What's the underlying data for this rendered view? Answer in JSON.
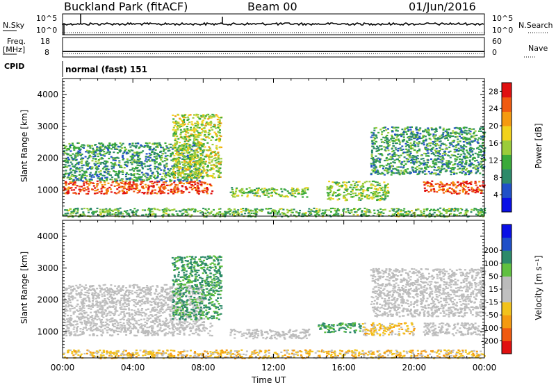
{
  "header": {
    "station": "Buckland Park (fitACF)",
    "beam": "Beam 00",
    "date": "01/Jun/2016"
  },
  "param_panels": {
    "nsky_label": "N.Sky",
    "nsearch_label": "N.Search",
    "nsky_ticks": [
      "10^5",
      "10^0"
    ],
    "nsearch_ticks": [
      "10^5",
      "10^0"
    ],
    "freq_label": "Freq.",
    "freq_unit": "[MHz]",
    "freq_ticks": [
      "18",
      "8"
    ],
    "nave_label": "Nave",
    "nave_ticks": [
      "60",
      "0"
    ],
    "cpid_label": "CPID",
    "cpid_value": "normal (fast) 151"
  },
  "chart_data": [
    {
      "type": "heatmap",
      "panel": "power",
      "title": "",
      "xlabel": "Time UT",
      "ylabel": "Slant Range [km]",
      "x_ticks": [
        "00:00",
        "04:00",
        "08:00",
        "12:00",
        "16:00",
        "20:00",
        "00:00"
      ],
      "xlim_hours": [
        0,
        24
      ],
      "y_ticks": [
        1000,
        2000,
        3000,
        4000
      ],
      "ylim": [
        180,
        4500
      ],
      "colorbar_label": "Power [dB]",
      "colorbar_ticks": [
        4,
        8,
        12,
        16,
        20,
        24,
        28
      ],
      "colorbar_range": [
        0,
        30
      ],
      "colorbar_colors": [
        "#0a10e6",
        "#2050c8",
        "#2d8a6a",
        "#3aaa3a",
        "#9bcc3a",
        "#f2d21c",
        "#f59a10",
        "#f05a10",
        "#e01010"
      ],
      "echo_regions": [
        {
          "t": [
            0.0,
            8.5
          ],
          "range_km": [
            900,
            1300
          ],
          "power_db": 26
        },
        {
          "t": [
            0.0,
            8.0
          ],
          "range_km": [
            1300,
            2500
          ],
          "power_db": 10
        },
        {
          "t": [
            6.2,
            9.0
          ],
          "range_km": [
            1400,
            3400
          ],
          "power_db": 16
        },
        {
          "t": [
            9.5,
            14.0
          ],
          "range_km": [
            800,
            1100
          ],
          "power_db": 14
        },
        {
          "t": [
            15.0,
            18.5
          ],
          "range_km": [
            700,
            1300
          ],
          "power_db": 14
        },
        {
          "t": [
            17.5,
            24.0
          ],
          "range_km": [
            1500,
            3000
          ],
          "power_db": 10
        },
        {
          "t": [
            20.5,
            24.0
          ],
          "range_km": [
            900,
            1300
          ],
          "power_db": 26
        },
        {
          "t": [
            0.0,
            24.0
          ],
          "range_km": [
            180,
            450
          ],
          "power_db": 12
        }
      ]
    },
    {
      "type": "heatmap",
      "panel": "velocity",
      "title": "",
      "xlabel": "Time UT",
      "ylabel": "Slant Range [km]",
      "x_ticks": [
        "00:00",
        "04:00",
        "08:00",
        "12:00",
        "16:00",
        "20:00",
        "00:00"
      ],
      "xlim_hours": [
        0,
        24
      ],
      "y_ticks": [
        1000,
        2000,
        3000,
        4000
      ],
      "ylim": [
        180,
        4500
      ],
      "colorbar_label": "Velocity [m s⁻¹]",
      "colorbar_ticks": [
        -200,
        -100,
        -50,
        -15,
        15,
        50,
        100,
        200
      ],
      "colorbar_range": [
        -250,
        250
      ],
      "colorbar_colors": [
        "#e01010",
        "#f05a10",
        "#f59a10",
        "#f2c21c",
        "#c0c0c0",
        "#bbbbbb",
        "#60c040",
        "#2d8a6a",
        "#2050c8",
        "#0a10e6"
      ],
      "echo_regions": [
        {
          "t": [
            0.0,
            8.5
          ],
          "range_km": [
            900,
            1300
          ],
          "velocity_ms": 0
        },
        {
          "t": [
            0.0,
            8.0
          ],
          "range_km": [
            1300,
            2500
          ],
          "velocity_ms": 0
        },
        {
          "t": [
            6.2,
            9.0
          ],
          "range_km": [
            1400,
            3400
          ],
          "velocity_ms": 60
        },
        {
          "t": [
            9.5,
            14.0
          ],
          "range_km": [
            800,
            1100
          ],
          "velocity_ms": 0
        },
        {
          "t": [
            14.5,
            17.0
          ],
          "range_km": [
            1000,
            1300
          ],
          "velocity_ms": 60
        },
        {
          "t": [
            17.0,
            20.0
          ],
          "range_km": [
            900,
            1300
          ],
          "velocity_ms": -30
        },
        {
          "t": [
            20.5,
            24.0
          ],
          "range_km": [
            900,
            1300
          ],
          "velocity_ms": 0
        },
        {
          "t": [
            17.5,
            24.0
          ],
          "range_km": [
            1500,
            3000
          ],
          "velocity_ms": 0
        },
        {
          "t": [
            0.0,
            24.0
          ],
          "range_km": [
            180,
            450
          ],
          "velocity_ms": -30
        }
      ]
    }
  ]
}
